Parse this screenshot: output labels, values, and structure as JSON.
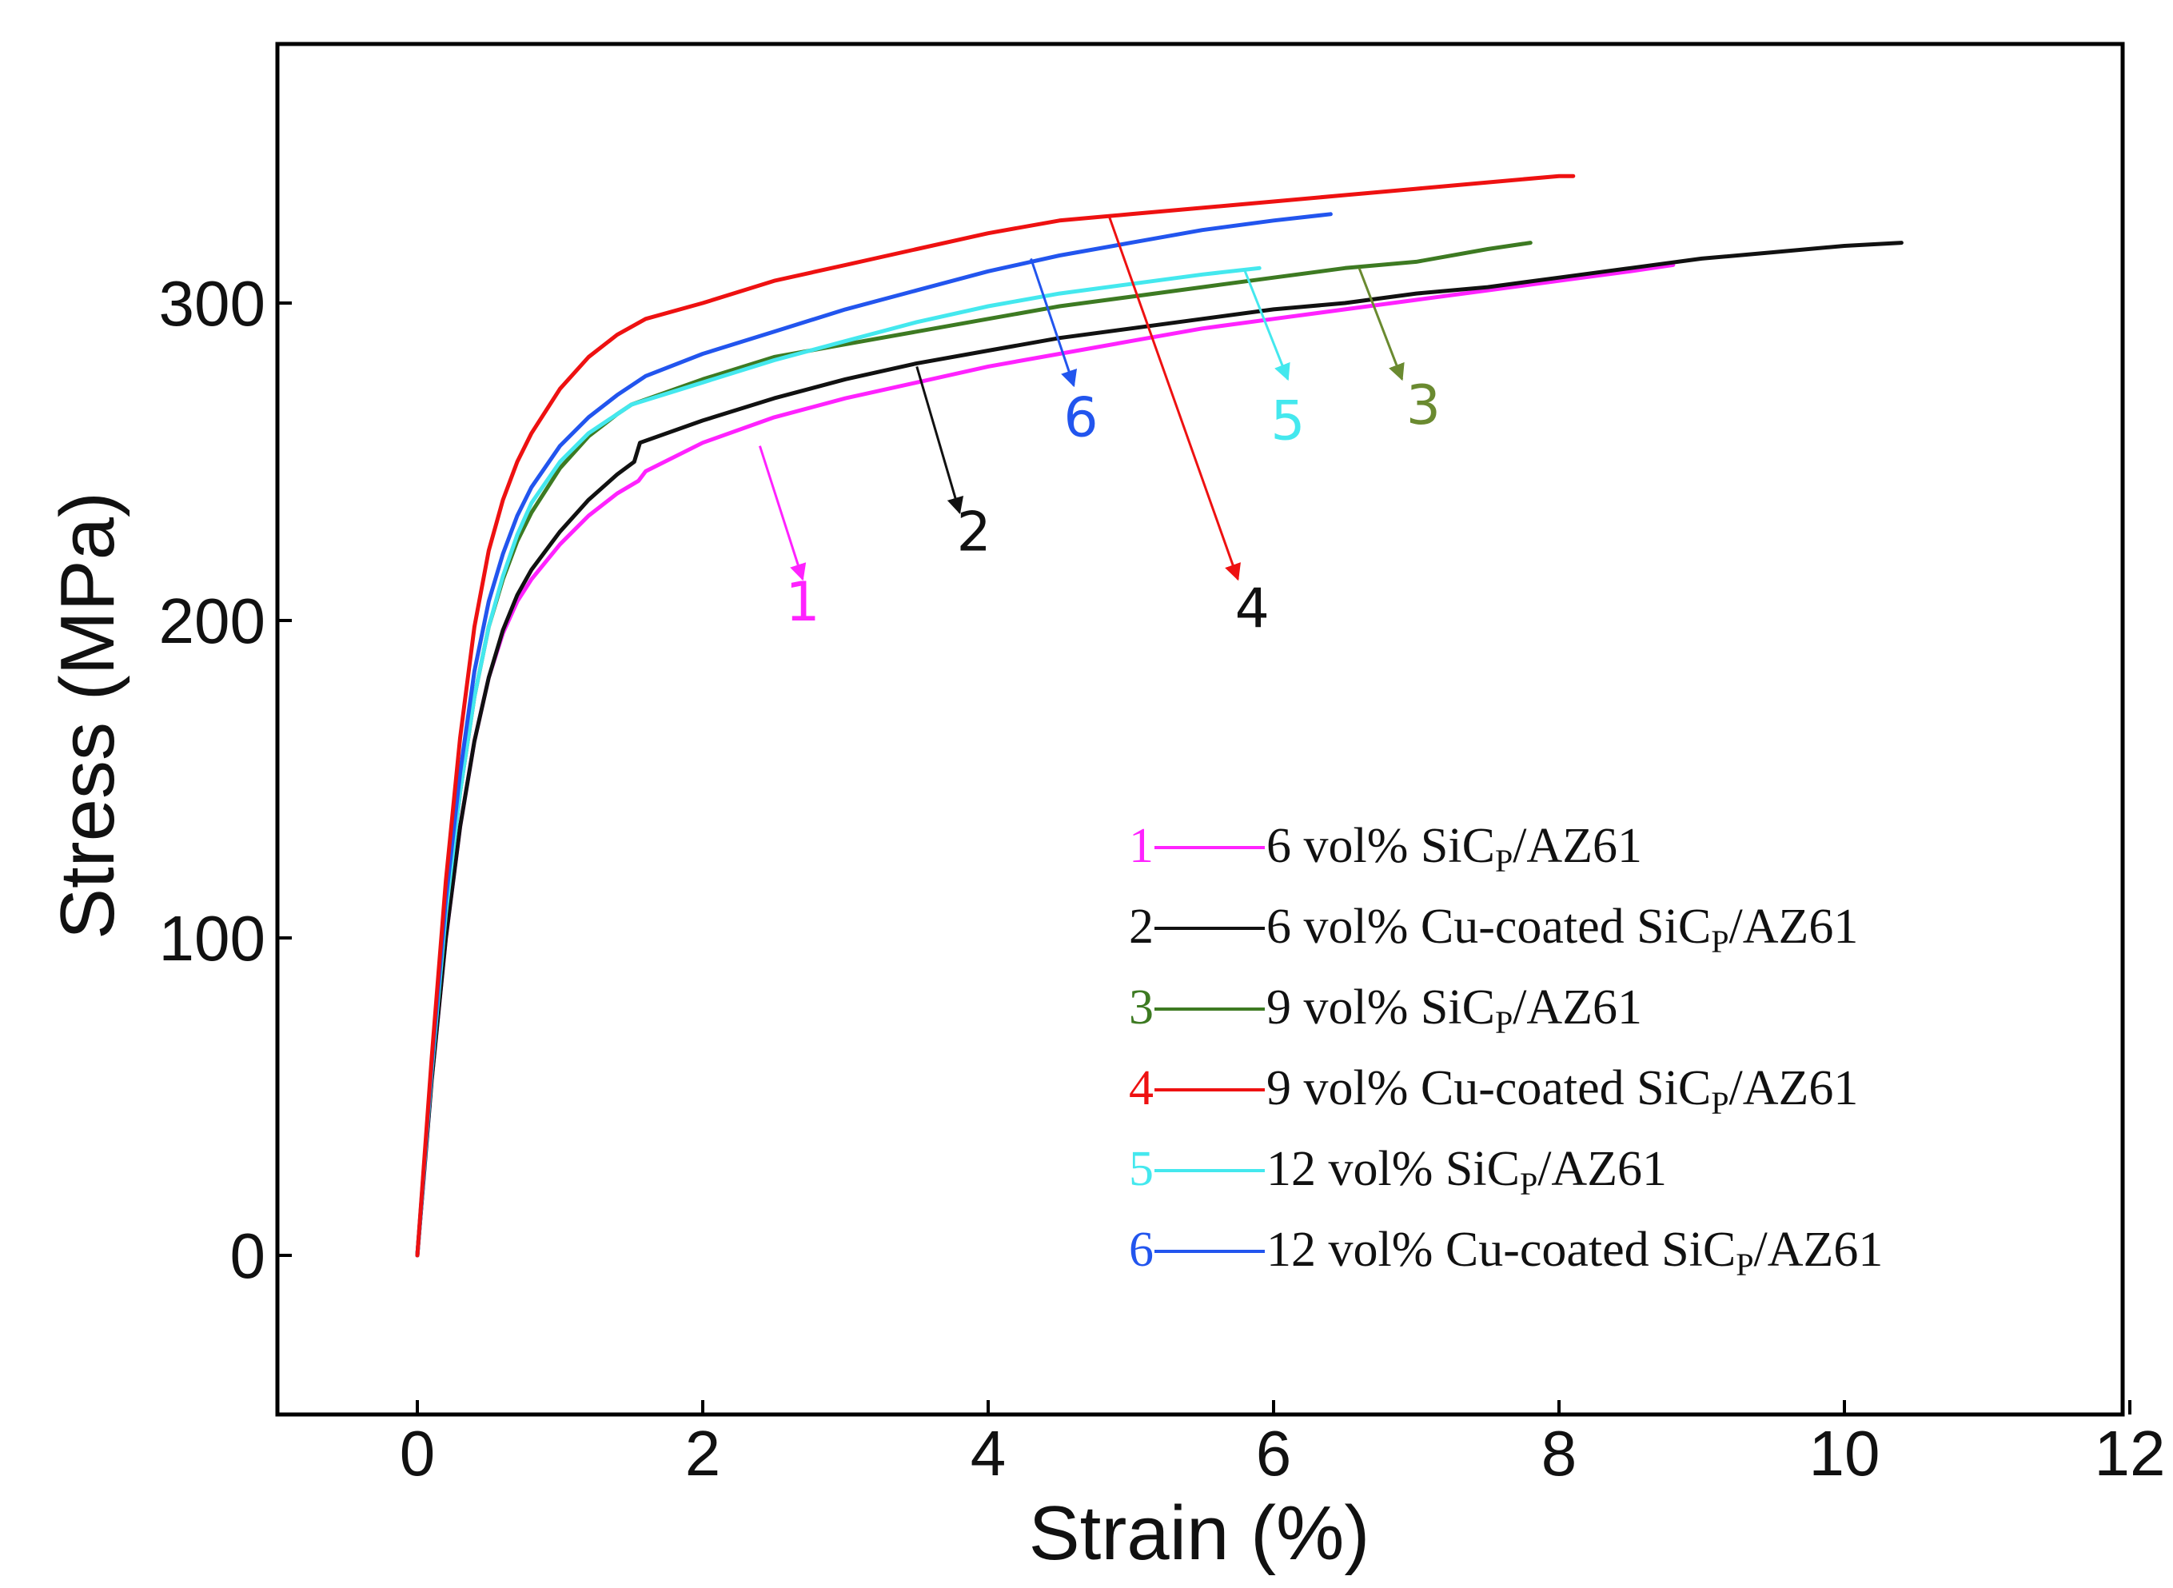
{
  "chart_data": {
    "type": "line",
    "title": "",
    "xlabel": "Strain (%)",
    "ylabel": "Stress (MPa)",
    "xlim": [
      -1,
      12
    ],
    "ylim": [
      -50,
      375
    ],
    "xticks": [
      0,
      2,
      4,
      6,
      8,
      10,
      12
    ],
    "yticks": [
      0,
      100,
      200,
      300
    ],
    "grid": false,
    "legend_position": "bottom-right",
    "series": [
      {
        "id": "1",
        "name": "6 vol% SiCp/AZ61",
        "label_main": "6 vol% SiC",
        "label_sub": "P",
        "label_tail": "/AZ61",
        "color": "#ff22ff",
        "x": [
          0,
          0.1,
          0.2,
          0.3,
          0.4,
          0.5,
          0.6,
          0.7,
          0.8,
          1.0,
          1.2,
          1.4,
          1.55,
          1.6,
          2,
          2.5,
          3,
          3.5,
          4,
          4.5,
          5,
          5.5,
          6,
          6.5,
          7,
          7.5,
          8,
          8.5,
          8.8
        ],
        "y": [
          0,
          55,
          100,
          135,
          162,
          182,
          196,
          206,
          213,
          224,
          233,
          240,
          244,
          247,
          256,
          264,
          270,
          275,
          280,
          284,
          288,
          292,
          295,
          298,
          301,
          304,
          307,
          310,
          312
        ]
      },
      {
        "id": "2",
        "name": "6 vol% Cu-coated SiCp/AZ61",
        "label_main": "6 vol% Cu-coated SiC",
        "label_sub": "P",
        "label_tail": "/AZ61",
        "color": "#111111",
        "x": [
          0,
          0.1,
          0.2,
          0.3,
          0.4,
          0.5,
          0.6,
          0.7,
          0.8,
          1.0,
          1.2,
          1.4,
          1.52,
          1.56,
          2,
          2.5,
          3,
          3.5,
          4,
          4.5,
          5,
          5.5,
          6,
          6.5,
          7,
          7.5,
          8,
          8.5,
          9,
          9.5,
          10,
          10.4
        ],
        "y": [
          0,
          55,
          100,
          135,
          162,
          182,
          197,
          208,
          216,
          228,
          238,
          246,
          250,
          256,
          263,
          270,
          276,
          281,
          285,
          289,
          292,
          295,
          298,
          300,
          303,
          305,
          308,
          311,
          314,
          316,
          318,
          319
        ]
      },
      {
        "id": "3",
        "name": "9 vol% SiCp/AZ61",
        "label_main": "9 vol% SiC",
        "label_sub": "P",
        "label_tail": "/AZ61",
        "color": "#3d7a22",
        "x": [
          0,
          0.1,
          0.2,
          0.3,
          0.4,
          0.5,
          0.6,
          0.7,
          0.8,
          1.0,
          1.2,
          1.4,
          1.5,
          2,
          2.5,
          3,
          3.5,
          4,
          4.5,
          5,
          5.5,
          6,
          6.5,
          7,
          7.5,
          7.8
        ],
        "y": [
          0,
          58,
          108,
          146,
          176,
          198,
          213,
          225,
          234,
          248,
          258,
          265,
          268,
          276,
          283,
          287,
          291,
          295,
          299,
          302,
          305,
          308,
          311,
          313,
          317,
          319
        ]
      },
      {
        "id": "4",
        "name": "9 vol% Cu-coated SiCp/AZ61",
        "label_main": "9 vol% Cu-coated SiC",
        "label_sub": "P",
        "label_tail": "/AZ61",
        "color": "#ee1111",
        "x": [
          0,
          0.1,
          0.2,
          0.3,
          0.4,
          0.5,
          0.6,
          0.7,
          0.8,
          1.0,
          1.2,
          1.4,
          1.6,
          2,
          2.5,
          3,
          3.5,
          4,
          4.5,
          5,
          5.5,
          6,
          6.5,
          7,
          7.5,
          8,
          8.1
        ],
        "y": [
          0,
          62,
          118,
          163,
          198,
          222,
          238,
          250,
          259,
          273,
          283,
          290,
          295,
          300,
          307,
          312,
          317,
          322,
          326,
          328,
          330,
          332,
          334,
          336,
          338,
          340,
          340
        ]
      },
      {
        "id": "5",
        "name": "12 vol% SiCp/AZ61",
        "label_main": "12 vol% SiC",
        "label_sub": "P",
        "label_tail": "/AZ61",
        "color": "#44e8ee",
        "x": [
          0,
          0.1,
          0.2,
          0.3,
          0.4,
          0.5,
          0.6,
          0.7,
          0.8,
          1.0,
          1.2,
          1.4,
          1.5,
          2,
          2.5,
          3,
          3.5,
          4,
          4.5,
          5,
          5.5,
          5.9
        ],
        "y": [
          0,
          58,
          108,
          146,
          176,
          198,
          214,
          227,
          237,
          250,
          259,
          265,
          268,
          275,
          282,
          288,
          294,
          299,
          303,
          306,
          309,
          311
        ]
      },
      {
        "id": "6",
        "name": "12 vol% Cu-coated SiCp/AZ61",
        "label_main": "12 vol% Cu-coated SiC",
        "label_sub": "P",
        "label_tail": "/AZ61",
        "color": "#2255ee",
        "x": [
          0,
          0.1,
          0.2,
          0.3,
          0.4,
          0.5,
          0.6,
          0.7,
          0.8,
          1.0,
          1.2,
          1.4,
          1.5,
          1.6,
          2,
          2.5,
          3,
          3.5,
          4,
          4.5,
          5,
          5.5,
          6,
          6.4
        ],
        "y": [
          0,
          60,
          112,
          152,
          184,
          206,
          221,
          233,
          242,
          255,
          264,
          271,
          274,
          277,
          284,
          291,
          298,
          304,
          310,
          315,
          319,
          323,
          326,
          328
        ]
      }
    ],
    "annotations": [
      {
        "text": "1",
        "color": "#ff22ff",
        "arrow_from": [
          2.4,
          255
        ],
        "arrow_to": [
          2.7,
          213
        ],
        "label_at": [
          2.7,
          200
        ]
      },
      {
        "text": "2",
        "color": "#111111",
        "arrow_from": [
          3.5,
          280
        ],
        "arrow_to": [
          3.8,
          234
        ],
        "label_at": [
          3.9,
          222
        ]
      },
      {
        "text": "3",
        "color": "#6a8a30",
        "arrow_from": [
          6.6,
          311
        ],
        "arrow_to": [
          6.9,
          276
        ],
        "label_at": [
          7.05,
          262
        ]
      },
      {
        "text": "4",
        "color": "#111111",
        "arrow_color": "#ee1111",
        "arrow_from": [
          4.85,
          327
        ],
        "arrow_to": [
          5.75,
          213
        ],
        "label_at": [
          5.85,
          198
        ]
      },
      {
        "text": "5",
        "color": "#44e8ee",
        "arrow_from": [
          5.8,
          310
        ],
        "arrow_to": [
          6.1,
          276
        ],
        "label_at": [
          6.1,
          257
        ]
      },
      {
        "text": "6",
        "color": "#2255ee",
        "arrow_from": [
          4.3,
          314
        ],
        "arrow_to": [
          4.6,
          274
        ],
        "label_at": [
          4.65,
          258
        ]
      }
    ]
  }
}
